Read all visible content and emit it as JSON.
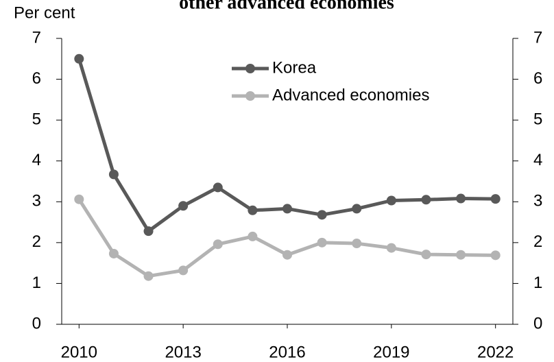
{
  "chart_data": {
    "type": "line",
    "title": "other advanced economies",
    "y_axis_label": "Per cent",
    "x": [
      2010,
      2011,
      2012,
      2013,
      2014,
      2015,
      2016,
      2017,
      2018,
      2019,
      2020,
      2021,
      2022
    ],
    "series": [
      {
        "name": "Korea",
        "color": "#595959",
        "values": [
          6.5,
          3.67,
          2.28,
          2.9,
          3.35,
          2.79,
          2.83,
          2.68,
          2.83,
          3.03,
          3.05,
          3.08,
          3.07
        ]
      },
      {
        "name": "Advanced economies",
        "color": "#b3b3b3",
        "values": [
          3.06,
          1.73,
          1.18,
          1.32,
          1.96,
          2.15,
          1.7,
          2.0,
          1.98,
          1.87,
          1.71,
          1.7,
          1.69
        ]
      }
    ],
    "xlim": [
      2009.5,
      2022.5
    ],
    "xticks": [
      2010,
      2013,
      2016,
      2019,
      2022
    ],
    "ylim": [
      0,
      7
    ],
    "yticks": [
      0,
      1,
      2,
      3,
      4,
      5,
      6,
      7
    ],
    "y2lim": [
      0,
      7
    ],
    "y2ticks": [
      0,
      1,
      2,
      3,
      4,
      5,
      6,
      7
    ],
    "grid": false,
    "legend": "top"
  }
}
